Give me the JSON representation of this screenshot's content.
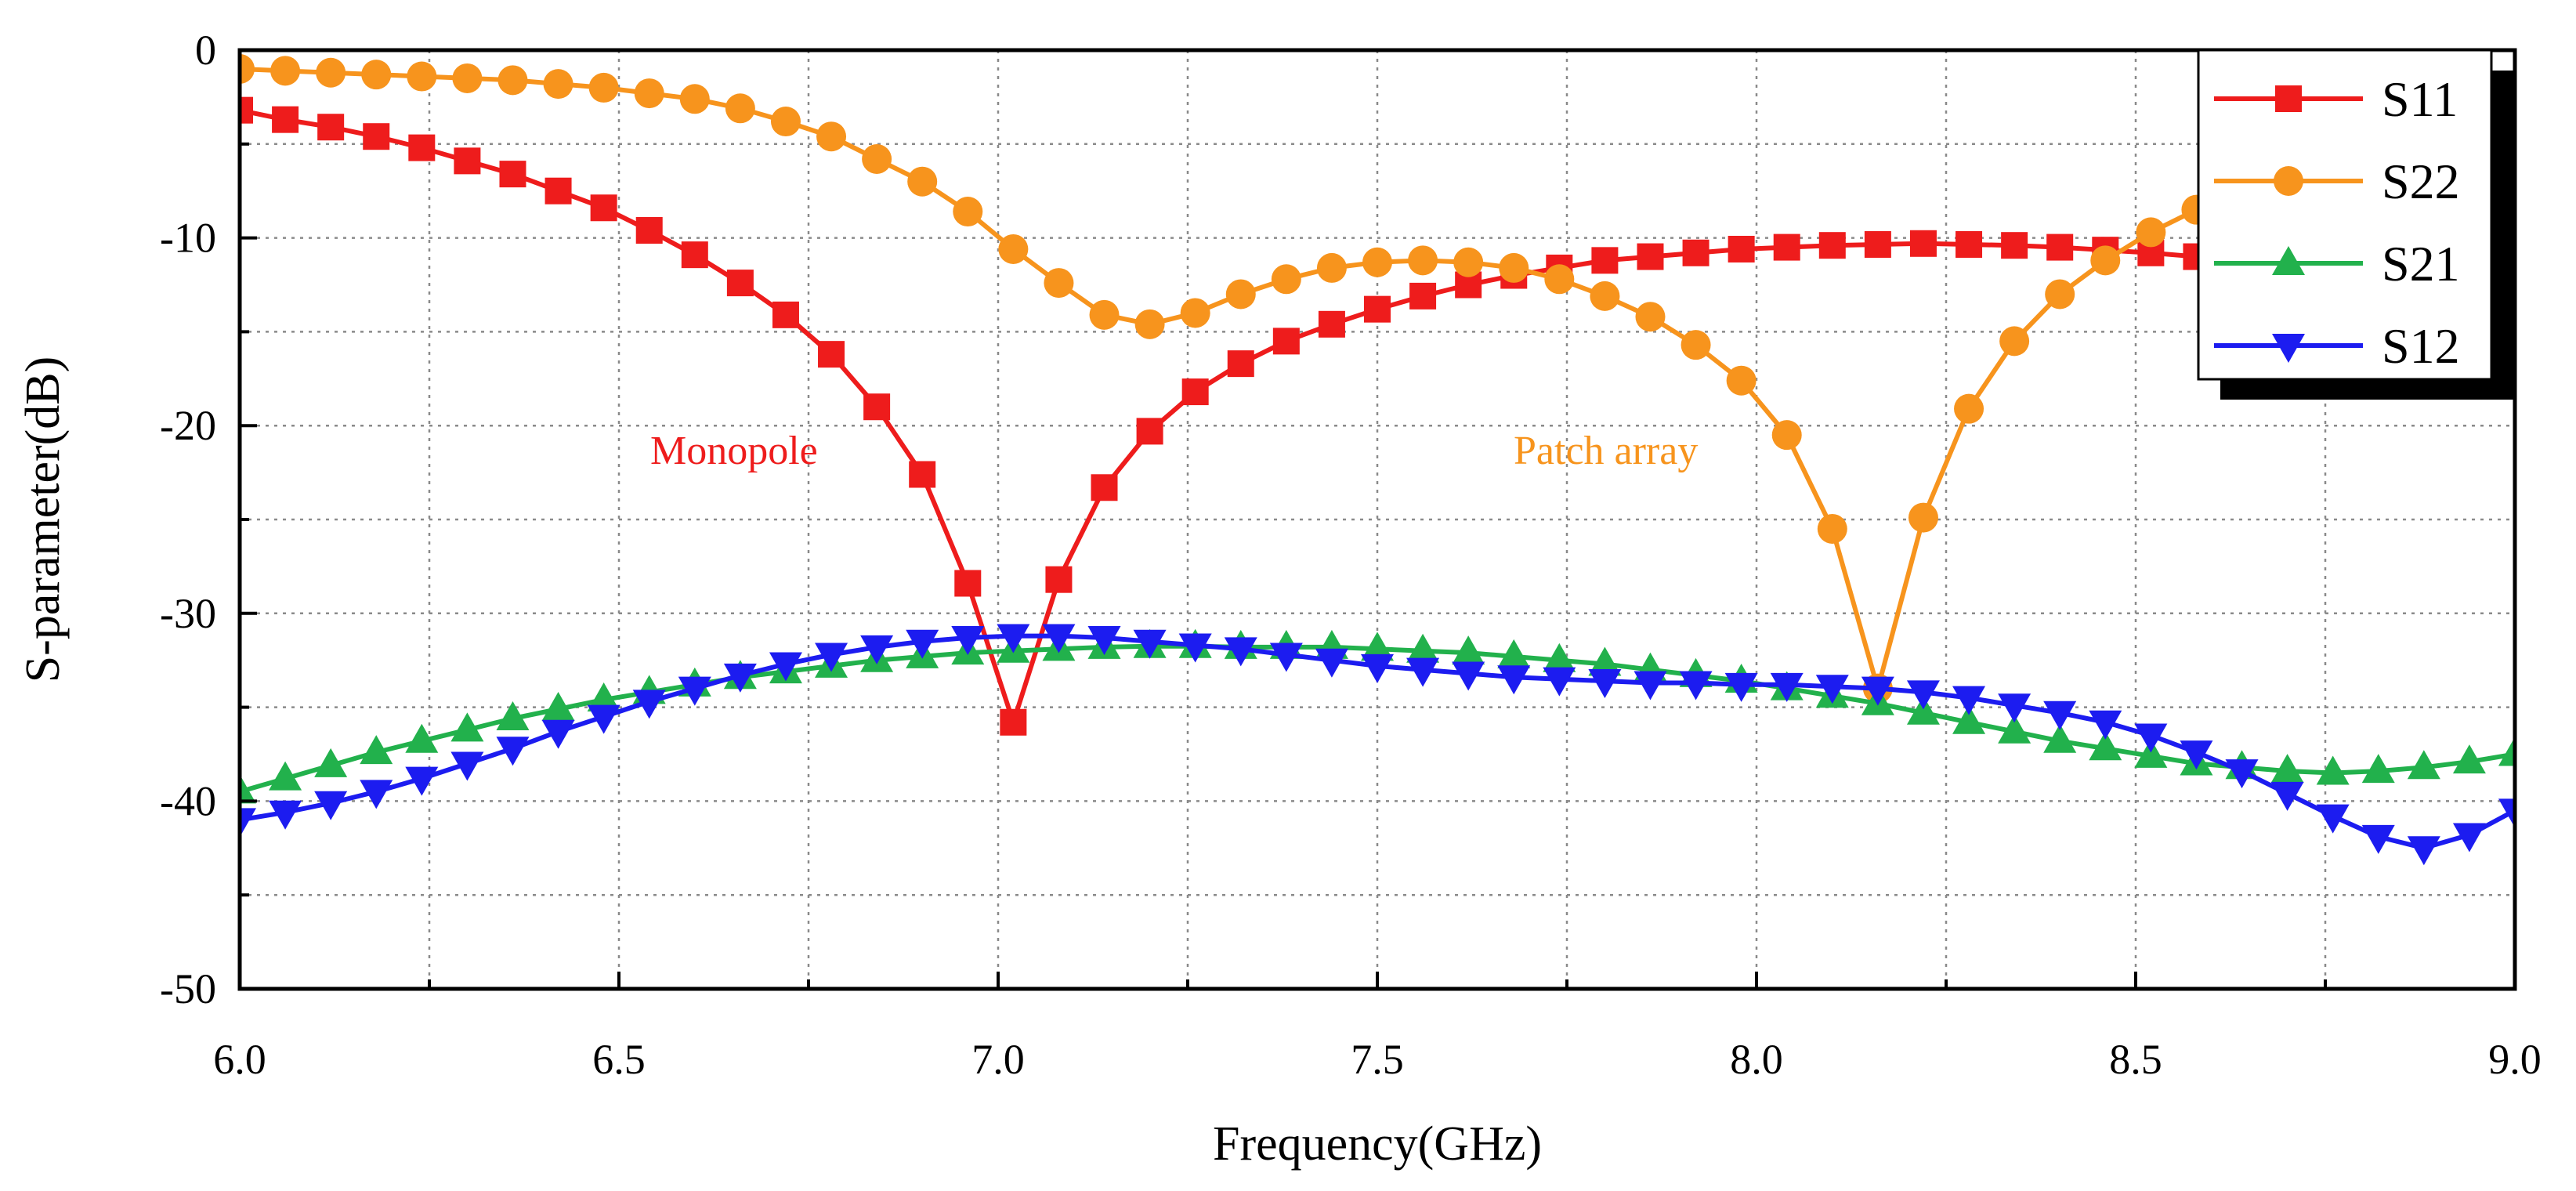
{
  "chart_data": {
    "type": "line",
    "xlabel": "Frequency(GHz)",
    "ylabel": "S-parameter(dB)",
    "xlim": [
      6.0,
      9.0
    ],
    "ylim": [
      -50,
      0
    ],
    "xticks": [
      6.0,
      6.5,
      7.0,
      7.5,
      8.0,
      8.5,
      9.0
    ],
    "xtick_labels": [
      "6.0",
      "6.5",
      "7.0",
      "7.5",
      "8.0",
      "8.5",
      "9.0"
    ],
    "yticks": [
      0,
      -10,
      -20,
      -30,
      -40,
      -50
    ],
    "ytick_labels": [
      "0",
      "-10",
      "-20",
      "-30",
      "-40",
      "-50"
    ],
    "grid": true,
    "legend_position": "top-right",
    "annotations": [
      {
        "text": "Monopole",
        "x": 6.55,
        "y": -21.5,
        "color": "#ee1c1c"
      },
      {
        "text": "Patch array",
        "x": 7.69,
        "y": -21.5,
        "color": "#f7941d"
      }
    ],
    "series": [
      {
        "name": "S11",
        "color": "#ee1c1c",
        "marker": "square",
        "x": [
          6.0,
          6.06,
          6.12,
          6.18,
          6.24,
          6.3,
          6.36,
          6.42,
          6.48,
          6.54,
          6.6,
          6.66,
          6.72,
          6.78,
          6.84,
          6.9,
          6.96,
          7.02,
          7.08,
          7.14,
          7.2,
          7.26,
          7.32,
          7.38,
          7.44,
          7.5,
          7.56,
          7.62,
          7.68,
          7.74,
          7.8,
          7.86,
          7.92,
          7.98,
          8.04,
          8.1,
          8.16,
          8.22,
          8.28,
          8.34,
          8.4,
          8.46,
          8.52,
          8.58
        ],
        "values": [
          -3.2,
          -3.7,
          -4.1,
          -4.6,
          -5.2,
          -5.9,
          -6.6,
          -7.5,
          -8.4,
          -9.6,
          -10.9,
          -12.4,
          -14.1,
          -16.2,
          -19.0,
          -22.6,
          -28.4,
          -35.8,
          -28.2,
          -23.3,
          -20.3,
          -18.2,
          -16.7,
          -15.5,
          -14.6,
          -13.8,
          -13.1,
          -12.5,
          -12.0,
          -11.6,
          -11.2,
          -11.0,
          -10.8,
          -10.6,
          -10.5,
          -10.4,
          -10.35,
          -10.3,
          -10.35,
          -10.4,
          -10.5,
          -10.65,
          -10.8,
          -11.0
        ]
      },
      {
        "name": "S22",
        "color": "#f7941d",
        "marker": "circle",
        "x": [
          6.0,
          6.06,
          6.12,
          6.18,
          6.24,
          6.3,
          6.36,
          6.42,
          6.48,
          6.54,
          6.6,
          6.66,
          6.72,
          6.78,
          6.84,
          6.9,
          6.96,
          7.02,
          7.08,
          7.14,
          7.2,
          7.26,
          7.32,
          7.38,
          7.44,
          7.5,
          7.56,
          7.62,
          7.68,
          7.74,
          7.8,
          7.86,
          7.92,
          7.98,
          8.04,
          8.1,
          8.16,
          8.22,
          8.28,
          8.34,
          8.4,
          8.46,
          8.52,
          8.58
        ],
        "values": [
          -1.0,
          -1.1,
          -1.2,
          -1.3,
          -1.4,
          -1.5,
          -1.6,
          -1.8,
          -2.0,
          -2.3,
          -2.6,
          -3.1,
          -3.8,
          -4.6,
          -5.8,
          -7.0,
          -8.6,
          -10.6,
          -12.4,
          -14.1,
          -14.6,
          -14.0,
          -13.0,
          -12.2,
          -11.6,
          -11.3,
          -11.2,
          -11.3,
          -11.6,
          -12.2,
          -13.1,
          -14.2,
          -15.7,
          -17.6,
          -20.5,
          -25.5,
          -34.0,
          -24.9,
          -19.1,
          -15.5,
          -13.0,
          -11.2,
          -9.7,
          -8.5
        ]
      },
      {
        "name": "S21",
        "color": "#22b14c",
        "marker": "triangle-up",
        "x": [
          6.0,
          6.06,
          6.12,
          6.18,
          6.24,
          6.3,
          6.36,
          6.42,
          6.48,
          6.54,
          6.6,
          6.66,
          6.72,
          6.78,
          6.84,
          6.9,
          6.96,
          7.02,
          7.08,
          7.14,
          7.2,
          7.26,
          7.32,
          7.38,
          7.44,
          7.5,
          7.56,
          7.62,
          7.68,
          7.74,
          7.8,
          7.86,
          7.92,
          7.98,
          8.04,
          8.1,
          8.16,
          8.22,
          8.28,
          8.34,
          8.4,
          8.46,
          8.52,
          8.58,
          8.64,
          8.7,
          8.76,
          8.82,
          8.88,
          8.94,
          9.0
        ],
        "values": [
          -39.5,
          -38.8,
          -38.1,
          -37.4,
          -36.8,
          -36.2,
          -35.6,
          -35.1,
          -34.6,
          -34.2,
          -33.8,
          -33.4,
          -33.1,
          -32.8,
          -32.5,
          -32.3,
          -32.1,
          -32.0,
          -31.9,
          -31.8,
          -31.75,
          -31.75,
          -31.8,
          -31.8,
          -31.8,
          -31.9,
          -32.0,
          -32.1,
          -32.3,
          -32.5,
          -32.7,
          -33.0,
          -33.3,
          -33.6,
          -34.0,
          -34.4,
          -34.8,
          -35.3,
          -35.8,
          -36.3,
          -36.8,
          -37.2,
          -37.6,
          -38.0,
          -38.2,
          -38.4,
          -38.5,
          -38.4,
          -38.2,
          -37.9,
          -37.5
        ]
      },
      {
        "name": "S12",
        "color": "#1c1cf0",
        "marker": "triangle-down",
        "x": [
          6.0,
          6.06,
          6.12,
          6.18,
          6.24,
          6.3,
          6.36,
          6.42,
          6.48,
          6.54,
          6.6,
          6.66,
          6.72,
          6.78,
          6.84,
          6.9,
          6.96,
          7.02,
          7.08,
          7.14,
          7.2,
          7.26,
          7.32,
          7.38,
          7.44,
          7.5,
          7.56,
          7.62,
          7.68,
          7.74,
          7.8,
          7.86,
          7.92,
          7.98,
          8.04,
          8.1,
          8.16,
          8.22,
          8.28,
          8.34,
          8.4,
          8.46,
          8.52,
          8.58,
          8.64,
          8.7,
          8.76,
          8.82,
          8.88,
          8.94,
          9.0
        ],
        "values": [
          -41.0,
          -40.6,
          -40.1,
          -39.5,
          -38.8,
          -38.0,
          -37.2,
          -36.3,
          -35.5,
          -34.7,
          -34.0,
          -33.3,
          -32.7,
          -32.2,
          -31.8,
          -31.5,
          -31.3,
          -31.2,
          -31.2,
          -31.3,
          -31.5,
          -31.7,
          -31.9,
          -32.2,
          -32.5,
          -32.8,
          -33.0,
          -33.2,
          -33.4,
          -33.5,
          -33.6,
          -33.7,
          -33.7,
          -33.8,
          -33.8,
          -33.9,
          -34.0,
          -34.2,
          -34.5,
          -34.9,
          -35.3,
          -35.8,
          -36.5,
          -37.4,
          -38.4,
          -39.6,
          -40.8,
          -41.9,
          -42.5,
          -41.8,
          -40.5
        ]
      }
    ]
  }
}
